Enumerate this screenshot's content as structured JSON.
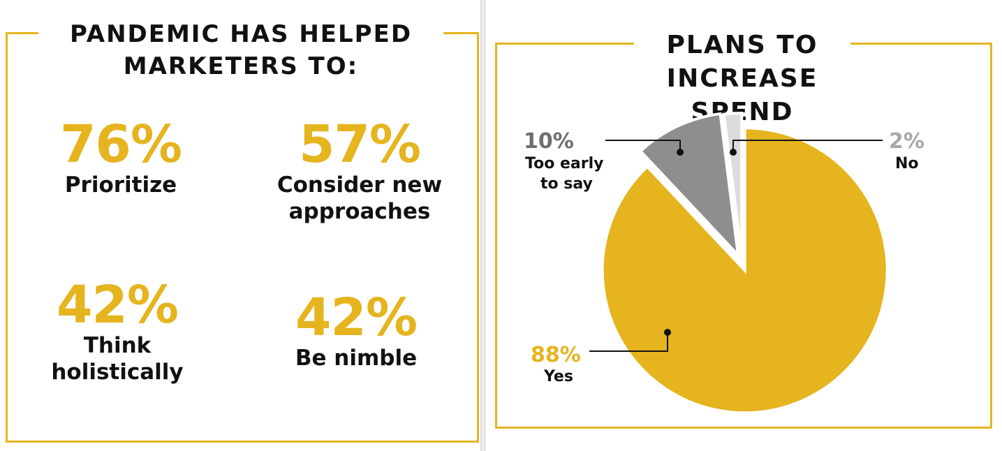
{
  "left_panel": {
    "heading_line1": "PANDEMIC HAS HELPED",
    "heading_line2": "MARKETERS TO:",
    "stats": [
      {
        "value": "76%",
        "label_lines": [
          "Prioritize"
        ]
      },
      {
        "value": "57%",
        "label_lines": [
          "Consider new",
          "approaches"
        ]
      },
      {
        "value": "42%",
        "label_lines": [
          "Think",
          "holistically"
        ]
      },
      {
        "value": "42%",
        "label_lines": [
          "Be nimble"
        ]
      }
    ]
  },
  "right_panel": {
    "heading_line1": "PLANS TO",
    "heading_line2": "INCREASE SPEND"
  },
  "colors": {
    "accent": "#e5b41e",
    "slice_too_early": "#8e8e90",
    "slice_no": "#dcdcdc",
    "text": "#111111",
    "pct_too_early": "#6e6e70",
    "pct_no": "#a8a8aa"
  },
  "chart_data": {
    "type": "pie",
    "title": "PLANS TO INCREASE SPEND",
    "slices": [
      {
        "label": "Yes",
        "label_lines": [
          "Yes"
        ],
        "value": 88,
        "value_label": "88%"
      },
      {
        "label": "Too early to say",
        "label_lines": [
          "Too early",
          "to say"
        ],
        "value": 10,
        "value_label": "10%"
      },
      {
        "label": "No",
        "label_lines": [
          "No"
        ],
        "value": 2,
        "value_label": "2%"
      }
    ]
  }
}
